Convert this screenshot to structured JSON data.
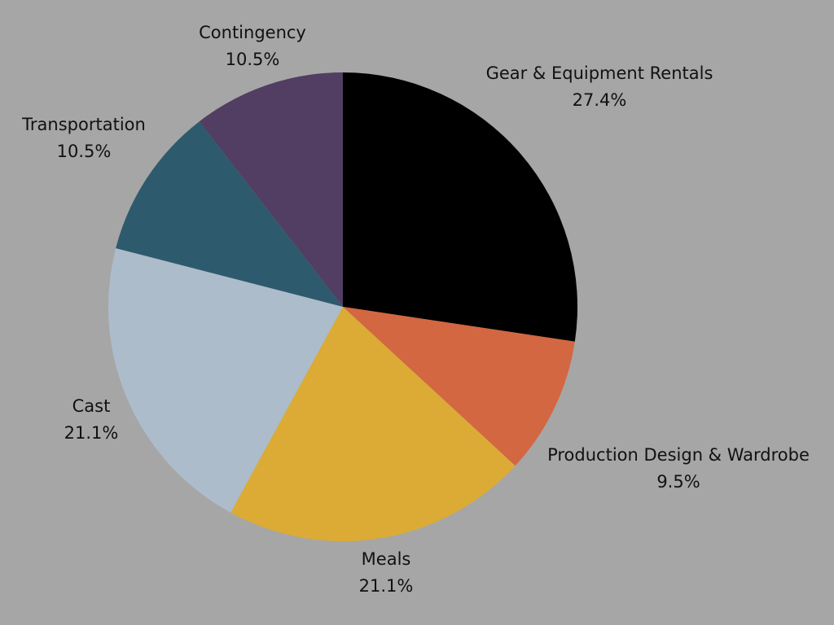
{
  "chart_data": {
    "type": "pie",
    "title": "",
    "start_angle_deg": 0,
    "direction": "clockwise",
    "background": "#a6a6a6",
    "slices": [
      {
        "label": "Gear & Equipment Rentals",
        "value": 27.4,
        "value_label": "27.4%",
        "color": "#000000"
      },
      {
        "label": "Production Design & Wardrobe",
        "value": 9.5,
        "value_label": "9.5%",
        "color": "#d36741"
      },
      {
        "label": "Meals",
        "value": 21.1,
        "value_label": "21.1%",
        "color": "#dbab36"
      },
      {
        "label": "Cast",
        "value": 21.1,
        "value_label": "21.1%",
        "color": "#acbccb"
      },
      {
        "label": "Transportation",
        "value": 10.5,
        "value_label": "10.5%",
        "color": "#2e5a6d"
      },
      {
        "label": "Contingency",
        "value": 10.5,
        "value_label": "10.5%",
        "color": "#513e62"
      }
    ]
  }
}
